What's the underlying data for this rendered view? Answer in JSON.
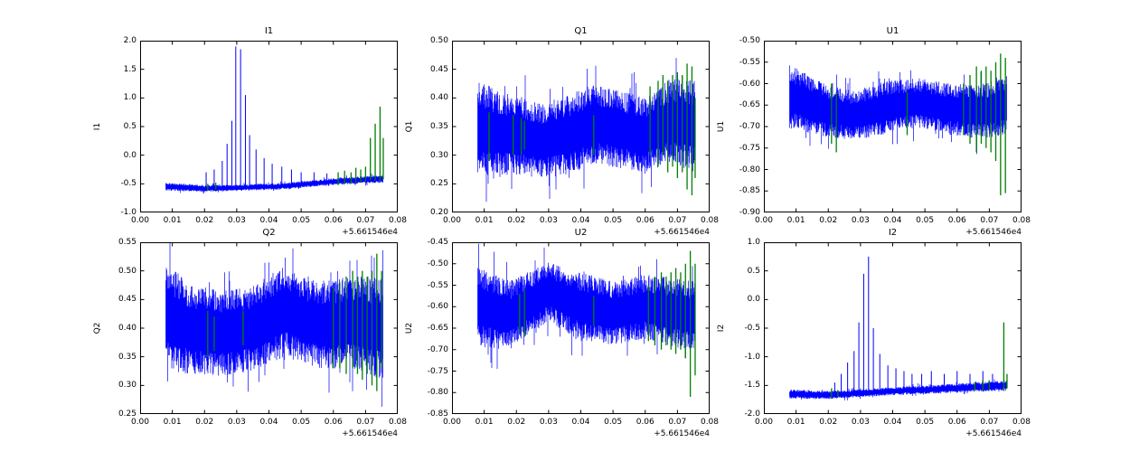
{
  "figure": {
    "background": "#ffffff"
  },
  "colors": {
    "series_main": "#0000ff",
    "series_flag": "#008000",
    "axes": "#000000"
  },
  "chart_common": {
    "type": "line",
    "grid": false,
    "legend": null,
    "xlim": [
      0,
      0.08
    ],
    "xticks": [
      0,
      0.01,
      0.02,
      0.03,
      0.04,
      0.05,
      0.06,
      0.07,
      0.08
    ],
    "xtick_labels": [
      "0.00",
      "0.01",
      "0.02",
      "0.03",
      "0.04",
      "0.05",
      "0.06",
      "0.07",
      "0.08"
    ],
    "x_offset_label": "+5.661546e4",
    "x_data_start": 0.008,
    "x_data_end": 0.0755
  },
  "chart_data": [
    {
      "type": "line",
      "title": "I1",
      "ylabel": "I1",
      "ylim": [
        -1.0,
        2.0
      ],
      "ytick_values": [
        2.0,
        1.5,
        1.0,
        0.5,
        0.0,
        -0.5,
        -1.0
      ],
      "ytick_labels": [
        "2.0",
        "1.5",
        "1.0",
        "0.5",
        "0.0",
        "-0.5",
        "-1.0"
      ],
      "band": {
        "x": [
          0.008,
          0.02,
          0.03,
          0.045,
          0.06,
          0.0755
        ],
        "center": [
          -0.55,
          -0.58,
          -0.57,
          -0.54,
          -0.46,
          -0.41
        ],
        "halfwidth": [
          0.07,
          0.06,
          0.055,
          0.055,
          0.06,
          0.07
        ]
      },
      "spikes": [
        [
          0.0205,
          -0.3
        ],
        [
          0.023,
          -0.25
        ],
        [
          0.0255,
          -0.1
        ],
        [
          0.027,
          0.2
        ],
        [
          0.0285,
          0.6
        ],
        [
          0.0297,
          1.9
        ],
        [
          0.0312,
          1.85
        ],
        [
          0.0327,
          1.05
        ],
        [
          0.034,
          0.35
        ],
        [
          0.036,
          0.1
        ],
        [
          0.0385,
          -0.05
        ],
        [
          0.041,
          -0.15
        ],
        [
          0.044,
          -0.2
        ],
        [
          0.047,
          -0.25
        ],
        [
          0.05,
          -0.3
        ],
        [
          0.054,
          -0.3
        ],
        [
          0.058,
          -0.32
        ]
      ],
      "green_lines": [
        [
          0.021,
          -0.62,
          -0.5
        ],
        [
          0.0235,
          -0.6,
          -0.48
        ],
        [
          0.0615,
          -0.52,
          -0.3
        ],
        [
          0.0635,
          -0.5,
          -0.27
        ],
        [
          0.0655,
          -0.5,
          -0.3
        ],
        [
          0.067,
          -0.48,
          -0.22
        ],
        [
          0.0685,
          -0.48,
          -0.25
        ],
        [
          0.07,
          -0.46,
          -0.2
        ],
        [
          0.0715,
          -0.45,
          0.3
        ],
        [
          0.073,
          -0.45,
          0.55
        ],
        [
          0.0745,
          -0.45,
          0.85
        ],
        [
          0.0755,
          -0.42,
          0.3
        ]
      ]
    },
    {
      "type": "line",
      "title": "Q1",
      "ylabel": "Q1",
      "ylim": [
        0.2,
        0.5
      ],
      "ytick_values": [
        0.5,
        0.45,
        0.4,
        0.35,
        0.3,
        0.25,
        0.2
      ],
      "ytick_labels": [
        "0.50",
        "0.45",
        "0.40",
        "0.35",
        "0.30",
        "0.25",
        "0.20"
      ],
      "band": {
        "x": [
          0.008,
          0.013,
          0.02,
          0.028,
          0.036,
          0.044,
          0.052,
          0.06,
          0.068,
          0.0755
        ],
        "center": [
          0.35,
          0.34,
          0.335,
          0.325,
          0.335,
          0.355,
          0.345,
          0.335,
          0.36,
          0.35
        ],
        "halfwidth": [
          0.085,
          0.075,
          0.07,
          0.065,
          0.07,
          0.07,
          0.068,
          0.065,
          0.075,
          0.08
        ]
      },
      "spikes": [],
      "green_lines": [
        [
          0.0115,
          0.29,
          0.375
        ],
        [
          0.019,
          0.3,
          0.37
        ],
        [
          0.0215,
          0.3,
          0.365
        ],
        [
          0.0225,
          0.31,
          0.36
        ],
        [
          0.044,
          0.3,
          0.37
        ],
        [
          0.0615,
          0.3,
          0.42
        ],
        [
          0.064,
          0.28,
          0.43
        ],
        [
          0.0655,
          0.3,
          0.44
        ],
        [
          0.067,
          0.27,
          0.43
        ],
        [
          0.0685,
          0.28,
          0.44
        ],
        [
          0.07,
          0.26,
          0.445
        ],
        [
          0.0715,
          0.27,
          0.44
        ],
        [
          0.073,
          0.24,
          0.46
        ],
        [
          0.0745,
          0.23,
          0.455
        ],
        [
          0.0755,
          0.26,
          0.4
        ]
      ]
    },
    {
      "type": "line",
      "title": "U1",
      "ylabel": "U1",
      "ylim": [
        -0.9,
        -0.5
      ],
      "ytick_values": [
        -0.5,
        -0.55,
        -0.6,
        -0.65,
        -0.7,
        -0.75,
        -0.8,
        -0.85,
        -0.9
      ],
      "ytick_labels": [
        "-0.50",
        "-0.55",
        "-0.60",
        "-0.65",
        "-0.70",
        "-0.75",
        "-0.80",
        "-0.85",
        "-0.90"
      ],
      "band": {
        "x": [
          0.008,
          0.018,
          0.028,
          0.038,
          0.048,
          0.058,
          0.068,
          0.0755
        ],
        "center": [
          -0.63,
          -0.66,
          -0.675,
          -0.655,
          -0.645,
          -0.66,
          -0.665,
          -0.65
        ],
        "halfwidth": [
          0.075,
          0.062,
          0.058,
          0.062,
          0.058,
          0.06,
          0.065,
          0.068
        ]
      },
      "spikes": [],
      "green_lines": [
        [
          0.021,
          -0.74,
          -0.6
        ],
        [
          0.0225,
          -0.76,
          -0.62
        ],
        [
          0.0445,
          -0.72,
          -0.62
        ],
        [
          0.062,
          -0.72,
          -0.6
        ],
        [
          0.064,
          -0.74,
          -0.58
        ],
        [
          0.066,
          -0.76,
          -0.56
        ],
        [
          0.0675,
          -0.74,
          -0.57
        ],
        [
          0.069,
          -0.75,
          -0.56
        ],
        [
          0.0705,
          -0.76,
          -0.57
        ],
        [
          0.072,
          -0.78,
          -0.55
        ],
        [
          0.0735,
          -0.86,
          -0.53
        ],
        [
          0.075,
          -0.855,
          -0.54
        ]
      ]
    },
    {
      "type": "line",
      "title": "Q2",
      "ylabel": "Q2",
      "ylim": [
        0.25,
        0.55
      ],
      "ytick_values": [
        0.55,
        0.5,
        0.45,
        0.4,
        0.35,
        0.3,
        0.25
      ],
      "ytick_labels": [
        "0.55",
        "0.50",
        "0.45",
        "0.40",
        "0.35",
        "0.30",
        "0.25"
      ],
      "band": {
        "x": [
          0.008,
          0.015,
          0.025,
          0.035,
          0.045,
          0.055,
          0.065,
          0.0755
        ],
        "center": [
          0.42,
          0.4,
          0.39,
          0.4,
          0.43,
          0.405,
          0.41,
          0.4
        ],
        "halfwidth": [
          0.095,
          0.08,
          0.075,
          0.075,
          0.08,
          0.075,
          0.08,
          0.09
        ]
      },
      "spikes": [],
      "green_lines": [
        [
          0.021,
          0.35,
          0.43
        ],
        [
          0.023,
          0.36,
          0.42
        ],
        [
          0.032,
          0.37,
          0.43
        ],
        [
          0.06,
          0.33,
          0.47
        ],
        [
          0.062,
          0.33,
          0.48
        ],
        [
          0.064,
          0.32,
          0.49
        ],
        [
          0.066,
          0.33,
          0.5
        ],
        [
          0.0675,
          0.32,
          0.49
        ],
        [
          0.069,
          0.31,
          0.5
        ],
        [
          0.0705,
          0.32,
          0.49
        ],
        [
          0.072,
          0.3,
          0.5
        ],
        [
          0.0735,
          0.29,
          0.53
        ],
        [
          0.075,
          0.33,
          0.5
        ]
      ]
    },
    {
      "type": "line",
      "title": "U2",
      "ylabel": "U2",
      "ylim": [
        -0.85,
        -0.45
      ],
      "ytick_values": [
        -0.45,
        -0.5,
        -0.55,
        -0.6,
        -0.65,
        -0.7,
        -0.75,
        -0.8,
        -0.85
      ],
      "ytick_labels": [
        "-0.45",
        "-0.50",
        "-0.55",
        "-0.60",
        "-0.65",
        "-0.70",
        "-0.75",
        "-0.80",
        "-0.85"
      ],
      "band": {
        "x": [
          0.008,
          0.018,
          0.03,
          0.04,
          0.05,
          0.06,
          0.07,
          0.0755
        ],
        "center": [
          -0.6,
          -0.62,
          -0.565,
          -0.6,
          -0.615,
          -0.6,
          -0.615,
          -0.62
        ],
        "halfwidth": [
          0.095,
          0.08,
          0.07,
          0.08,
          0.075,
          0.075,
          0.08,
          0.085
        ]
      },
      "spikes": [],
      "green_lines": [
        [
          0.021,
          -0.66,
          -0.57
        ],
        [
          0.0225,
          -0.67,
          -0.56
        ],
        [
          0.044,
          -0.645,
          -0.575
        ],
        [
          0.061,
          -0.68,
          -0.55
        ],
        [
          0.063,
          -0.69,
          -0.53
        ],
        [
          0.065,
          -0.7,
          -0.52
        ],
        [
          0.0665,
          -0.69,
          -0.53
        ],
        [
          0.068,
          -0.7,
          -0.52
        ],
        [
          0.0695,
          -0.71,
          -0.51
        ],
        [
          0.071,
          -0.7,
          -0.52
        ],
        [
          0.0725,
          -0.72,
          -0.5
        ],
        [
          0.074,
          -0.81,
          -0.47
        ],
        [
          0.0755,
          -0.76,
          -0.5
        ]
      ]
    },
    {
      "type": "line",
      "title": "I2",
      "ylabel": "I2",
      "ylim": [
        -2.0,
        1.0
      ],
      "ytick_values": [
        1.0,
        0.5,
        0.0,
        -0.5,
        -1.0,
        -1.5,
        -2.0
      ],
      "ytick_labels": [
        "1.0",
        "0.5",
        "0.0",
        "-0.5",
        "-1.0",
        "-1.5",
        "-2.0"
      ],
      "band": {
        "x": [
          0.008,
          0.02,
          0.04,
          0.06,
          0.0755
        ],
        "center": [
          -1.65,
          -1.67,
          -1.6,
          -1.55,
          -1.5
        ],
        "halfwidth": [
          0.08,
          0.07,
          0.07,
          0.08,
          0.09
        ]
      },
      "spikes": [
        [
          0.022,
          -1.45
        ],
        [
          0.024,
          -1.3
        ],
        [
          0.026,
          -1.1
        ],
        [
          0.028,
          -0.9
        ],
        [
          0.0295,
          -0.4
        ],
        [
          0.031,
          0.45
        ],
        [
          0.0325,
          0.75
        ],
        [
          0.034,
          -0.5
        ],
        [
          0.036,
          -0.95
        ],
        [
          0.0385,
          -1.15
        ],
        [
          0.041,
          -1.2
        ],
        [
          0.0435,
          -1.25
        ],
        [
          0.046,
          -1.3
        ],
        [
          0.049,
          -1.3
        ],
        [
          0.052,
          -1.25
        ],
        [
          0.056,
          -1.3
        ],
        [
          0.06,
          -1.25
        ],
        [
          0.064,
          -1.3
        ],
        [
          0.068,
          -1.25
        ],
        [
          0.071,
          -1.3
        ]
      ],
      "green_lines": [
        [
          0.021,
          -1.72,
          -1.55
        ],
        [
          0.023,
          -1.7,
          -1.58
        ],
        [
          0.0655,
          -1.6,
          -1.45
        ],
        [
          0.068,
          -1.6,
          -1.4
        ],
        [
          0.07,
          -1.58,
          -1.42
        ],
        [
          0.0745,
          -1.6,
          -0.4
        ],
        [
          0.0755,
          -1.55,
          -1.3
        ]
      ]
    }
  ]
}
